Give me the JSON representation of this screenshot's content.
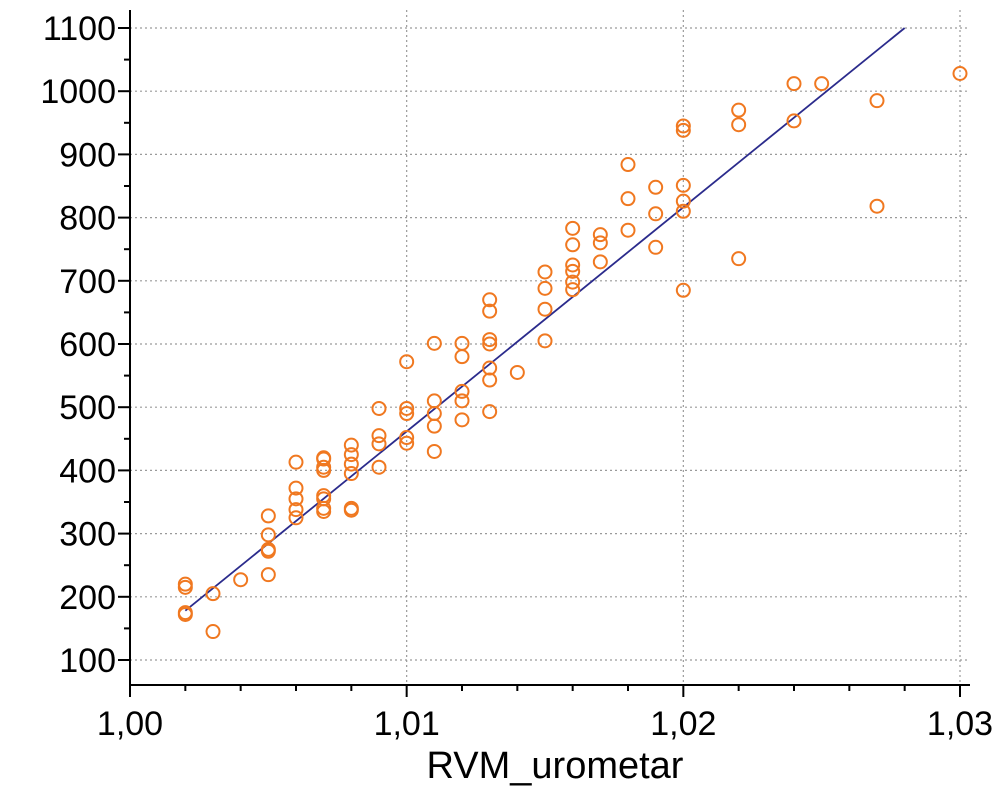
{
  "chart_data": {
    "type": "scatter",
    "title": "",
    "xlabel": "RVM_urometar",
    "ylabel": "",
    "xlim": [
      1.0,
      1.03
    ],
    "ylim": [
      80,
      1100
    ],
    "x_ticks": [
      1.0,
      1.01,
      1.02,
      1.03
    ],
    "x_tick_labels": [
      "1,00",
      "1,01",
      "1,02",
      "1,03"
    ],
    "y_ticks": [
      100,
      200,
      300,
      400,
      500,
      600,
      700,
      800,
      900,
      1000,
      1100
    ],
    "y_tick_labels": [
      "100",
      "200",
      "300",
      "400",
      "500",
      "600",
      "700",
      "800",
      "900",
      "1000",
      "1100"
    ],
    "grid": true,
    "legend": "none",
    "colors": {
      "points": "#f07820",
      "fit_line": "#2b2b8c",
      "grid": "#9a9a9a",
      "axis": "#000000"
    },
    "points": [
      [
        1.002,
        220
      ],
      [
        1.002,
        215
      ],
      [
        1.002,
        175
      ],
      [
        1.002,
        172
      ],
      [
        1.003,
        205
      ],
      [
        1.003,
        145
      ],
      [
        1.004,
        227
      ],
      [
        1.005,
        328
      ],
      [
        1.005,
        298
      ],
      [
        1.005,
        275
      ],
      [
        1.005,
        272
      ],
      [
        1.005,
        235
      ],
      [
        1.006,
        413
      ],
      [
        1.006,
        372
      ],
      [
        1.006,
        355
      ],
      [
        1.006,
        338
      ],
      [
        1.006,
        325
      ],
      [
        1.007,
        420
      ],
      [
        1.007,
        418
      ],
      [
        1.007,
        405
      ],
      [
        1.007,
        400
      ],
      [
        1.007,
        360
      ],
      [
        1.007,
        355
      ],
      [
        1.007,
        340
      ],
      [
        1.007,
        335
      ],
      [
        1.008,
        440
      ],
      [
        1.008,
        425
      ],
      [
        1.008,
        410
      ],
      [
        1.008,
        395
      ],
      [
        1.008,
        340
      ],
      [
        1.008,
        337
      ],
      [
        1.009,
        498
      ],
      [
        1.009,
        455
      ],
      [
        1.009,
        442
      ],
      [
        1.009,
        405
      ],
      [
        1.01,
        572
      ],
      [
        1.01,
        498
      ],
      [
        1.01,
        490
      ],
      [
        1.01,
        452
      ],
      [
        1.01,
        443
      ],
      [
        1.011,
        601
      ],
      [
        1.011,
        510
      ],
      [
        1.011,
        490
      ],
      [
        1.011,
        470
      ],
      [
        1.011,
        430
      ],
      [
        1.012,
        601
      ],
      [
        1.012,
        580
      ],
      [
        1.012,
        525
      ],
      [
        1.012,
        510
      ],
      [
        1.012,
        480
      ],
      [
        1.013,
        670
      ],
      [
        1.013,
        652
      ],
      [
        1.013,
        607
      ],
      [
        1.013,
        600
      ],
      [
        1.013,
        562
      ],
      [
        1.013,
        543
      ],
      [
        1.013,
        493
      ],
      [
        1.014,
        555
      ],
      [
        1.015,
        714
      ],
      [
        1.015,
        688
      ],
      [
        1.015,
        655
      ],
      [
        1.015,
        605
      ],
      [
        1.016,
        783
      ],
      [
        1.016,
        757
      ],
      [
        1.016,
        725
      ],
      [
        1.016,
        715
      ],
      [
        1.016,
        698
      ],
      [
        1.016,
        686
      ],
      [
        1.017,
        773
      ],
      [
        1.017,
        760
      ],
      [
        1.017,
        730
      ],
      [
        1.018,
        884
      ],
      [
        1.018,
        830
      ],
      [
        1.018,
        780
      ],
      [
        1.019,
        848
      ],
      [
        1.019,
        806
      ],
      [
        1.019,
        753
      ],
      [
        1.02,
        945
      ],
      [
        1.02,
        938
      ],
      [
        1.02,
        851
      ],
      [
        1.02,
        826
      ],
      [
        1.02,
        810
      ],
      [
        1.02,
        685
      ],
      [
        1.022,
        970
      ],
      [
        1.022,
        947
      ],
      [
        1.022,
        735
      ],
      [
        1.024,
        1012
      ],
      [
        1.024,
        953
      ],
      [
        1.025,
        1012
      ],
      [
        1.027,
        985
      ],
      [
        1.027,
        818
      ],
      [
        1.03,
        1028
      ]
    ],
    "fit_line": {
      "x": [
        1.002,
        1.028
      ],
      "y": [
        178,
        1100
      ]
    }
  }
}
